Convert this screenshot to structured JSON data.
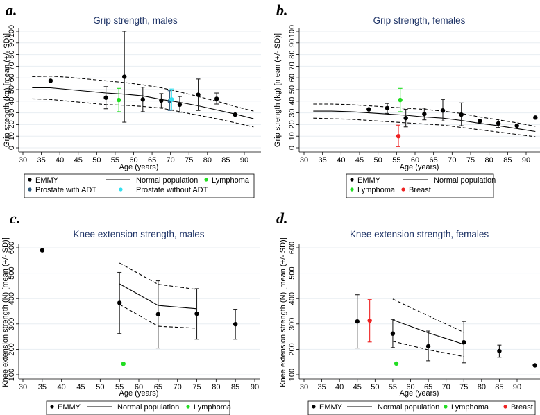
{
  "figure": {
    "panels": [
      "a",
      "b",
      "c",
      "d"
    ]
  },
  "chart_data": [
    {
      "panel_letter": "a.",
      "type": "scatter",
      "title": "Grip strength, males",
      "xlabel": "Age (years)",
      "ylabel": "Grip strength (kg) [mean (+/- SD)]",
      "xlim": [
        30,
        93
      ],
      "ylim": [
        0,
        100
      ],
      "xticks": [
        30,
        35,
        40,
        45,
        50,
        55,
        60,
        65,
        70,
        75,
        80,
        85,
        90
      ],
      "yticks": [
        0,
        10,
        20,
        30,
        40,
        50,
        60,
        70,
        80,
        90,
        100
      ],
      "grid": true,
      "normal_population": {
        "x": [
          32.5,
          37.5,
          42.5,
          47.5,
          52.5,
          57.5,
          62.5,
          67.5,
          72.5,
          77.5,
          82.5,
          87.5,
          92.5
        ],
        "mean": [
          51.5,
          51.5,
          50,
          48.5,
          47,
          46,
          44.5,
          41.5,
          39,
          36,
          32.5,
          29,
          25
        ],
        "upper": [
          61,
          61.5,
          60.5,
          59,
          57.5,
          56,
          54,
          51.5,
          48,
          44,
          40,
          35.5,
          31.5
        ],
        "lower": [
          42,
          41.5,
          40,
          38.5,
          37,
          36.5,
          35.5,
          34,
          31,
          28,
          25,
          21.5,
          18
        ]
      },
      "series": [
        {
          "name": "EMMY",
          "color": "#000000",
          "points": [
            {
              "x": 37.5,
              "y": 57.5
            },
            {
              "x": 52.5,
              "y": 43,
              "err_low": 33.5,
              "err_high": 52.5
            },
            {
              "x": 57.5,
              "y": 61,
              "err_low": 22,
              "err_high": 100
            },
            {
              "x": 62.5,
              "y": 41.5,
              "err_low": 31,
              "err_high": 52
            },
            {
              "x": 67.5,
              "y": 40.5,
              "err_low": 34.5,
              "err_high": 46.5
            },
            {
              "x": 72.5,
              "y": 37,
              "err_low": 30.5,
              "err_high": 44
            },
            {
              "x": 77.5,
              "y": 45.5,
              "err_low": 32,
              "err_high": 59
            },
            {
              "x": 82.5,
              "y": 42,
              "err_low": 37.5,
              "err_high": 47
            },
            {
              "x": 87.5,
              "y": 28.5
            }
          ]
        },
        {
          "name": "Lymphoma",
          "color": "#22dd22",
          "points": [
            {
              "x": 56,
              "y": 41,
              "err_low": 31,
              "err_high": 51
            }
          ]
        },
        {
          "name": "Prostate with ADT",
          "color": "#2a5578",
          "points": [
            {
              "x": 69.8,
              "y": 40,
              "err_low": 32,
              "err_high": 49
            }
          ]
        },
        {
          "name": "Prostate without ADT",
          "color": "#33e0f0",
          "points": [
            {
              "x": 70.3,
              "y": 41.5,
              "err_low": 32.5,
              "err_high": 50.5
            }
          ]
        }
      ],
      "legend": [
        {
          "label": "EMMY",
          "kind": "dot",
          "color": "#000000"
        },
        {
          "label": "Normal population",
          "kind": "line",
          "color": "#000000"
        },
        {
          "label": "Lymphoma",
          "kind": "dot",
          "color": "#22dd22"
        },
        {
          "label": "Prostate with ADT",
          "kind": "dot",
          "color": "#2a5578"
        },
        {
          "label": "Prostate without ADT",
          "kind": "dot",
          "color": "#33e0f0"
        }
      ],
      "legend_placement": "bottom"
    },
    {
      "panel_letter": "b.",
      "type": "scatter",
      "title": "Grip strength, females",
      "xlabel": "Age (years)",
      "ylabel": "Grip strength (kg) [mean (+/- SD)]",
      "xlim": [
        29,
        93
      ],
      "ylim": [
        0,
        100
      ],
      "xticks": [
        30,
        35,
        40,
        45,
        50,
        55,
        60,
        65,
        70,
        75,
        80,
        85,
        90
      ],
      "yticks": [
        0,
        10,
        20,
        30,
        40,
        50,
        60,
        70,
        80,
        90,
        100
      ],
      "grid": true,
      "normal_population": {
        "x": [
          32.5,
          37.5,
          42.5,
          47.5,
          52.5,
          57.5,
          62.5,
          67.5,
          72.5,
          77.5,
          82.5,
          87.5,
          92.5
        ],
        "mean": [
          31.5,
          31.5,
          31,
          30,
          29,
          28,
          26.5,
          25.5,
          23.5,
          21,
          19,
          16.5,
          14
        ],
        "upper": [
          37.5,
          37.5,
          37,
          36,
          35,
          34,
          33,
          31.5,
          29.5,
          26.5,
          24,
          21.5,
          18.5
        ],
        "lower": [
          25.5,
          25,
          24.5,
          23.5,
          22.5,
          21.5,
          20.5,
          19.5,
          17.5,
          15.5,
          13.5,
          11.5,
          9.5
        ]
      },
      "series": [
        {
          "name": "EMMY",
          "color": "#000000",
          "points": [
            {
              "x": 47.5,
              "y": 33
            },
            {
              "x": 52.5,
              "y": 34,
              "err_low": 29.5,
              "err_high": 38
            },
            {
              "x": 57.5,
              "y": 25.5,
              "err_low": 18,
              "err_high": 33
            },
            {
              "x": 62.5,
              "y": 29,
              "err_low": 24,
              "err_high": 34
            },
            {
              "x": 67.5,
              "y": 32,
              "err_low": 23,
              "err_high": 41.5
            },
            {
              "x": 72.5,
              "y": 28.5,
              "err_low": 19,
              "err_high": 38.5
            },
            {
              "x": 77.5,
              "y": 23
            },
            {
              "x": 82.5,
              "y": 21,
              "err_low": 17.5,
              "err_high": 24.5
            },
            {
              "x": 87.5,
              "y": 19
            },
            {
              "x": 92.5,
              "y": 26
            }
          ]
        },
        {
          "name": "Lymphoma",
          "color": "#22dd22",
          "points": [
            {
              "x": 56,
              "y": 41,
              "err_low": 31,
              "err_high": 51
            }
          ]
        },
        {
          "name": "Breast",
          "color": "#ee2222",
          "points": [
            {
              "x": 55.5,
              "y": 10,
              "err_low": 1,
              "err_high": 19.5
            }
          ]
        }
      ],
      "legend": [
        {
          "label": "EMMY",
          "kind": "dot",
          "color": "#000000"
        },
        {
          "label": "Normal population",
          "kind": "line",
          "color": "#000000"
        },
        {
          "label": "Lymphoma",
          "kind": "dot",
          "color": "#22dd22"
        },
        {
          "label": "Breast",
          "kind": "dot",
          "color": "#ee2222"
        }
      ],
      "legend_placement": "bottom"
    },
    {
      "panel_letter": "c.",
      "type": "scatter",
      "title": "Knee extension strength, males",
      "xlabel": "Age (years)",
      "ylabel": "Knee extension strength (N) [mean (+/- SD)]",
      "xlim": [
        29,
        91
      ],
      "ylim": [
        90,
        615
      ],
      "xticks": [
        30,
        35,
        40,
        45,
        50,
        55,
        60,
        65,
        70,
        75,
        80,
        85,
        90
      ],
      "yticks": [
        100,
        200,
        300,
        400,
        500,
        600
      ],
      "grid": true,
      "normal_population": {
        "x": [
          55,
          65,
          75
        ],
        "mean": [
          458,
          373,
          360
        ],
        "upper": [
          540,
          456,
          436
        ],
        "lower": [
          377,
          291,
          283
        ]
      },
      "series": [
        {
          "name": "EMMY",
          "color": "#000000",
          "points": [
            {
              "x": 35,
              "y": 590
            },
            {
              "x": 55,
              "y": 383,
              "err_low": 262,
              "err_high": 503
            },
            {
              "x": 65,
              "y": 338,
              "err_low": 205,
              "err_high": 470
            },
            {
              "x": 75,
              "y": 340,
              "err_low": 240,
              "err_high": 439
            },
            {
              "x": 85,
              "y": 299,
              "err_low": 240,
              "err_high": 358
            }
          ]
        },
        {
          "name": "Lymphoma",
          "color": "#22dd22",
          "points": [
            {
              "x": 56,
              "y": 143
            }
          ]
        }
      ],
      "legend": [
        {
          "label": "EMMY",
          "kind": "dot",
          "color": "#000000"
        },
        {
          "label": "Normal population",
          "kind": "line",
          "color": "#000000"
        },
        {
          "label": "Lymphoma",
          "kind": "dot",
          "color": "#22dd22"
        }
      ],
      "legend_placement": "bottom"
    },
    {
      "panel_letter": "d.",
      "type": "scatter",
      "title": "Knee extension strength, females",
      "xlabel": "Age (years)",
      "ylabel": "Knee extension strength (N) [mean (+/- SD)]",
      "xlim": [
        29,
        95
      ],
      "ylim": [
        90,
        615
      ],
      "xticks": [
        30,
        35,
        40,
        45,
        50,
        55,
        60,
        65,
        70,
        75,
        80,
        85,
        90
      ],
      "yticks": [
        100,
        200,
        300,
        400,
        500,
        600
      ],
      "grid": true,
      "normal_population": {
        "x": [
          55,
          65,
          75
        ],
        "mean": [
          316,
          265,
          220
        ],
        "upper": [
          398,
          332,
          267
        ],
        "lower": [
          232,
          198,
          172
        ]
      },
      "series": [
        {
          "name": "EMMY",
          "color": "#000000",
          "points": [
            {
              "x": 45,
              "y": 310,
              "err_low": 205,
              "err_high": 415
            },
            {
              "x": 55,
              "y": 262,
              "err_low": 207,
              "err_high": 318
            },
            {
              "x": 65,
              "y": 212,
              "err_low": 155,
              "err_high": 272
            },
            {
              "x": 75,
              "y": 228,
              "err_low": 147,
              "err_high": 310
            },
            {
              "x": 85,
              "y": 193,
              "err_low": 169,
              "err_high": 217
            },
            {
              "x": 95,
              "y": 137
            }
          ]
        },
        {
          "name": "Lymphoma",
          "color": "#22dd22",
          "points": [
            {
              "x": 56,
              "y": 144
            }
          ]
        },
        {
          "name": "Breast",
          "color": "#ee2222",
          "points": [
            {
              "x": 48.5,
              "y": 313,
              "err_low": 229,
              "err_high": 396
            }
          ]
        }
      ],
      "legend": [
        {
          "label": "EMMY",
          "kind": "dot",
          "color": "#000000"
        },
        {
          "label": "Normal population",
          "kind": "line",
          "color": "#000000"
        },
        {
          "label": "Lymphoma",
          "kind": "dot",
          "color": "#22dd22"
        },
        {
          "label": "Breast",
          "kind": "dot",
          "color": "#ee2222"
        }
      ],
      "legend_placement": "bottom"
    }
  ]
}
